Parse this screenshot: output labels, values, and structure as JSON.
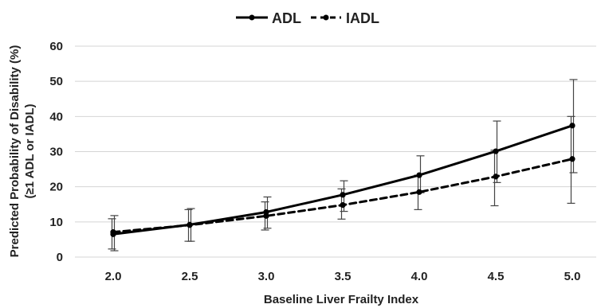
{
  "chart_data": {
    "type": "line",
    "title": "",
    "xlabel": "Baseline Liver Frailty Index",
    "ylabel_line1": "Predicted Probability of Disability (%)",
    "ylabel_line2": "(≥1 ADL or IADL)",
    "x": [
      2.0,
      2.5,
      3.0,
      3.5,
      4.0,
      4.5,
      5.0
    ],
    "x_tick_labels": [
      "2.0",
      "2.5",
      "3.0",
      "3.5",
      "4.0",
      "4.5",
      "5.0"
    ],
    "ylim": [
      0,
      60
    ],
    "y_ticks": [
      0,
      10,
      20,
      30,
      40,
      50,
      60
    ],
    "grid": true,
    "legend_position": "top-center",
    "series": [
      {
        "name": "ADL",
        "line_style": "solid",
        "color": "#000000",
        "values": [
          6.5,
          9.2,
          12.8,
          17.7,
          23.3,
          30.1,
          37.4
        ],
        "error_low": [
          1.8,
          4.5,
          8.2,
          13.0,
          18.3,
          21.2,
          24.0
        ],
        "error_high": [
          11.8,
          13.8,
          17.1,
          21.7,
          28.8,
          38.7,
          50.5
        ]
      },
      {
        "name": "IADL",
        "line_style": "dashed",
        "color": "#000000",
        "values": [
          7.1,
          9.1,
          11.7,
          14.8,
          18.5,
          22.9,
          27.9
        ],
        "error_low": [
          2.3,
          4.5,
          7.7,
          10.8,
          13.5,
          14.6,
          15.3
        ],
        "error_high": [
          10.9,
          13.5,
          15.7,
          19.4,
          23.3,
          30.4,
          40.0
        ]
      }
    ]
  }
}
